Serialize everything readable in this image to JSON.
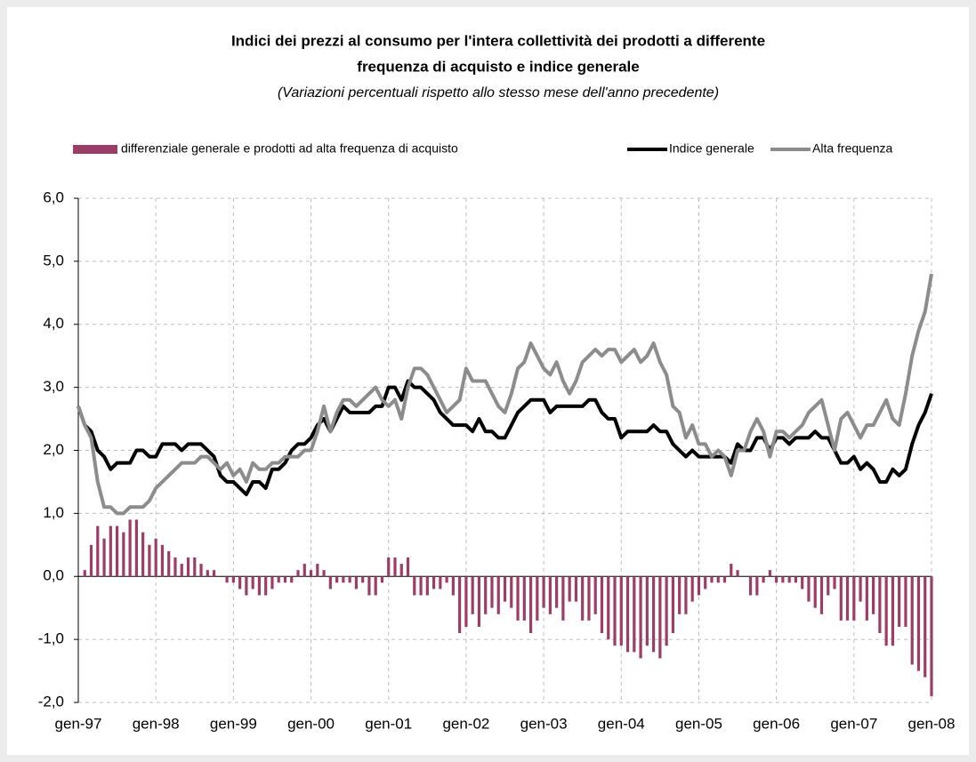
{
  "chart_data": {
    "type": "bar-line",
    "title": [
      "Indici dei prezzi al consumo per l'intera collettività dei prodotti a differente",
      "frequenza di acquisto e indice generale"
    ],
    "subtitle": "(Variazioni percentuali rispetto allo stesso mese dell'anno precedente)",
    "categories": [
      "gen-97",
      null,
      null,
      null,
      null,
      null,
      null,
      null,
      null,
      null,
      null,
      null,
      "gen-98",
      null,
      null,
      null,
      null,
      null,
      null,
      null,
      null,
      null,
      null,
      null,
      "gen-99",
      null,
      null,
      null,
      null,
      null,
      null,
      null,
      null,
      null,
      null,
      null,
      "gen-00",
      null,
      null,
      null,
      null,
      null,
      null,
      null,
      null,
      null,
      null,
      null,
      "gen-01",
      null,
      null,
      null,
      null,
      null,
      null,
      null,
      null,
      null,
      null,
      null,
      "gen-02",
      null,
      null,
      null,
      null,
      null,
      null,
      null,
      null,
      null,
      null,
      null,
      "gen-03",
      null,
      null,
      null,
      null,
      null,
      null,
      null,
      null,
      null,
      null,
      null,
      "gen-04",
      null,
      null,
      null,
      null,
      null,
      null,
      null,
      null,
      null,
      null,
      null,
      "gen-05",
      null,
      null,
      null,
      null,
      null,
      null,
      null,
      null,
      null,
      null,
      null,
      "gen-06",
      null,
      null,
      null,
      null,
      null,
      null,
      null,
      null,
      null,
      null,
      null,
      "gen-07",
      null,
      null,
      null,
      null,
      null,
      null,
      null,
      null,
      null,
      null,
      null,
      "gen-08"
    ],
    "series": [
      {
        "name": "differenziale generale e prodotti ad alta frequenza di acquisto",
        "kind": "bar",
        "color": "#9c3d68",
        "values": [
          0,
          0.1,
          0.5,
          0.8,
          0.6,
          0.8,
          0.8,
          0.7,
          0.9,
          0.9,
          0.7,
          0.5,
          0.6,
          0.5,
          0.4,
          0.3,
          0.2,
          0.3,
          0.3,
          0.2,
          0.1,
          0.1,
          0,
          -0.1,
          -0.1,
          -0.2,
          -0.3,
          -0.2,
          -0.3,
          -0.3,
          -0.2,
          -0.1,
          -0.1,
          -0.1,
          0.1,
          0.2,
          0.1,
          0.2,
          0.1,
          -0.2,
          -0.1,
          -0.1,
          -0.1,
          -0.2,
          -0.1,
          -0.3,
          -0.3,
          -0.1,
          0.3,
          0.3,
          0.2,
          0.3,
          -0.3,
          -0.3,
          -0.3,
          -0.2,
          -0.2,
          -0.1,
          -0.3,
          -0.9,
          -0.8,
          -0.6,
          -0.8,
          -0.6,
          -0.5,
          -0.6,
          -0.4,
          -0.5,
          -0.7,
          -0.7,
          -0.9,
          -0.7,
          -0.5,
          -0.6,
          -0.5,
          -0.7,
          -0.4,
          -0.4,
          -0.7,
          -0.7,
          -0.6,
          -0.9,
          -1.0,
          -1.1,
          -1.1,
          -1.2,
          -1.2,
          -1.3,
          -1.1,
          -1.2,
          -1.3,
          -1.1,
          -0.9,
          -0.6,
          -0.6,
          -0.4,
          -0.3,
          -0.2,
          -0.1,
          -0.1,
          -0.1,
          0.2,
          0.1,
          0,
          -0.3,
          -0.3,
          -0.1,
          0.1,
          -0.1,
          -0.1,
          -0.1,
          -0.1,
          -0.2,
          -0.4,
          -0.5,
          -0.6,
          -0.3,
          -0.2,
          -0.7,
          -0.7,
          -0.7,
          -0.4,
          -0.7,
          -0.6,
          -0.9,
          -1.1,
          -1.1,
          -0.8,
          -0.8,
          -1.4,
          -1.5,
          -1.6,
          -1.9
        ]
      },
      {
        "name": "Indice generale",
        "kind": "line",
        "color": "#000000",
        "values": [
          2.7,
          2.4,
          2.3,
          2.0,
          1.9,
          1.7,
          1.8,
          1.8,
          1.8,
          2.0,
          2.0,
          1.9,
          1.9,
          2.1,
          2.1,
          2.1,
          2.0,
          2.1,
          2.1,
          2.1,
          2.0,
          1.9,
          1.6,
          1.5,
          1.5,
          1.4,
          1.3,
          1.5,
          1.5,
          1.4,
          1.7,
          1.7,
          1.8,
          2.0,
          2.1,
          2.1,
          2.2,
          2.4,
          2.5,
          2.3,
          2.5,
          2.7,
          2.6,
          2.6,
          2.6,
          2.6,
          2.7,
          2.7,
          3.0,
          3.0,
          2.8,
          3.1,
          3.0,
          3.0,
          2.9,
          2.8,
          2.6,
          2.5,
          2.4,
          2.4,
          2.4,
          2.3,
          2.5,
          2.3,
          2.3,
          2.2,
          2.2,
          2.4,
          2.6,
          2.7,
          2.8,
          2.8,
          2.8,
          2.6,
          2.7,
          2.7,
          2.7,
          2.7,
          2.7,
          2.8,
          2.8,
          2.6,
          2.5,
          2.5,
          2.2,
          2.3,
          2.3,
          2.3,
          2.3,
          2.4,
          2.3,
          2.3,
          2.1,
          2.0,
          1.9,
          2.0,
          1.9,
          1.9,
          1.9,
          1.9,
          1.9,
          1.8,
          2.1,
          2.0,
          2.0,
          2.2,
          2.2,
          2.0,
          2.2,
          2.2,
          2.1,
          2.2,
          2.2,
          2.2,
          2.3,
          2.2,
          2.2,
          2.0,
          1.8,
          1.8,
          1.9,
          1.7,
          1.8,
          1.7,
          1.5,
          1.5,
          1.7,
          1.6,
          1.7,
          2.1,
          2.4,
          2.6,
          2.9
        ]
      },
      {
        "name": "Alta frequenza",
        "kind": "line",
        "color": "#8c8c8c",
        "values": [
          2.7,
          2.4,
          2.2,
          1.5,
          1.1,
          1.1,
          1.0,
          1.0,
          1.1,
          1.1,
          1.1,
          1.2,
          1.4,
          1.5,
          1.6,
          1.7,
          1.8,
          1.8,
          1.8,
          1.9,
          1.9,
          1.8,
          1.7,
          1.8,
          1.6,
          1.7,
          1.5,
          1.8,
          1.7,
          1.7,
          1.8,
          1.8,
          1.9,
          1.9,
          1.9,
          2.0,
          2.0,
          2.3,
          2.7,
          2.3,
          2.6,
          2.8,
          2.8,
          2.7,
          2.8,
          2.9,
          3.0,
          2.8,
          2.7,
          2.8,
          2.5,
          3.0,
          3.3,
          3.3,
          3.2,
          3.0,
          2.8,
          2.6,
          2.7,
          2.8,
          3.3,
          3.1,
          3.1,
          3.1,
          2.9,
          2.7,
          2.6,
          2.9,
          3.3,
          3.4,
          3.7,
          3.5,
          3.3,
          3.2,
          3.4,
          3.1,
          2.9,
          3.1,
          3.4,
          3.5,
          3.6,
          3.5,
          3.6,
          3.6,
          3.4,
          3.5,
          3.6,
          3.4,
          3.5,
          3.7,
          3.4,
          3.2,
          2.7,
          2.6,
          2.2,
          2.4,
          2.1,
          2.1,
          1.9,
          2.0,
          1.9,
          1.6,
          2.0,
          2.0,
          2.3,
          2.5,
          2.3,
          1.9,
          2.3,
          2.3,
          2.2,
          2.3,
          2.4,
          2.6,
          2.7,
          2.8,
          2.4,
          2.0,
          2.5,
          2.6,
          2.4,
          2.2,
          2.4,
          2.4,
          2.6,
          2.8,
          2.5,
          2.4,
          2.9,
          3.5,
          3.9,
          4.2,
          4.8
        ]
      }
    ],
    "ylim": [
      -2,
      6
    ],
    "yticks": [
      {
        "value": -2,
        "label": "-2,0"
      },
      {
        "value": -1,
        "label": "-1,0"
      },
      {
        "value": 0,
        "label": "0,0"
      },
      {
        "value": 1,
        "label": "1,0"
      },
      {
        "value": 2,
        "label": "2,0"
      },
      {
        "value": 3,
        "label": "3,0"
      },
      {
        "value": 4,
        "label": "4,0"
      },
      {
        "value": 5,
        "label": "5,0"
      },
      {
        "value": 6,
        "label": "6,0"
      }
    ],
    "grid": true
  }
}
